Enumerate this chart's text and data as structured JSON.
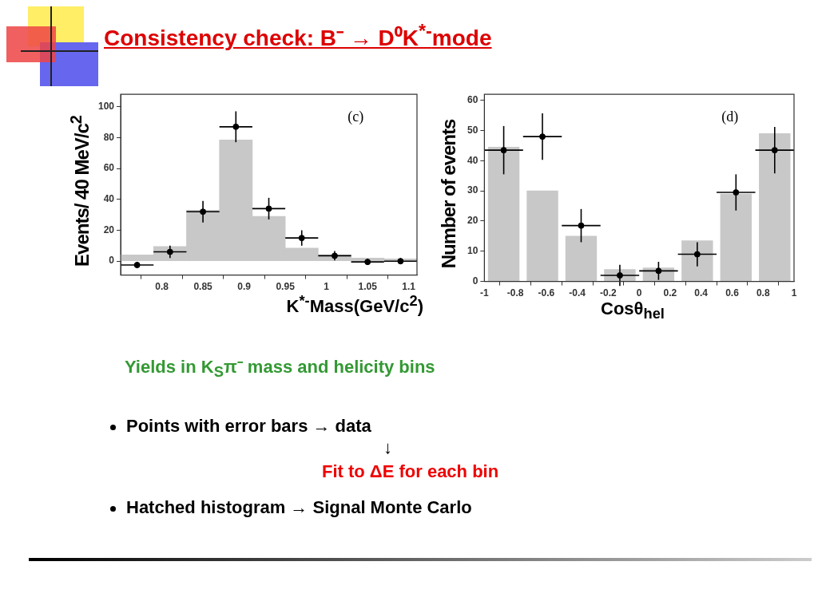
{
  "chart_data": [
    {
      "type": "histogram",
      "title": "Consistency check: B⁻ → D⁰K$^{*-}$mode",
      "xlabel": "K$^{*-}$Mass(GeV/c$^{2}$)",
      "ylabel": "Events/ 40 MeV/c$^{2}$",
      "xlim": [
        0.75,
        1.11
      ],
      "ylim": [
        -9,
        108
      ],
      "xticks": [
        0.8,
        0.85,
        0.9,
        0.95,
        1,
        1.05,
        1.1
      ],
      "yticks": [
        0,
        20,
        40,
        60,
        80,
        100
      ],
      "annotations": [
        "(c)"
      ],
      "color": "#c8c8c8",
      "bins": [
        0.75,
        0.79,
        0.83,
        0.87,
        0.91,
        0.95,
        0.99,
        1.03,
        1.07,
        1.11
      ],
      "values": [
        4,
        9.5,
        33,
        78.5,
        29,
        8.5,
        4,
        2,
        1.5
      ],
      "series": [
        {
          "type": "scatter",
          "color": "#000000",
          "marker": "circle",
          "x": [
            0.77,
            0.81,
            0.85,
            0.89,
            0.93,
            0.97,
            1.01,
            1.05,
            1.09
          ],
          "values": [
            -2.5,
            6,
            32,
            87,
            34,
            15,
            3.5,
            -0.5,
            0
          ],
          "errors": [
            2,
            4,
            7,
            10,
            7,
            5,
            3,
            2,
            2
          ],
          "xerrors": [
            0.02,
            0.02,
            0.02,
            0.02,
            0.02,
            0.02,
            0.02,
            0.02,
            0.02
          ]
        }
      ]
    },
    {
      "type": "histogram",
      "xlabel": "Cosθ$_{hel}$",
      "ylabel": "Number of events",
      "xlim": [
        -1,
        1
      ],
      "ylim": [
        0,
        62
      ],
      "xticks": [
        -1,
        -0.8,
        -0.6,
        -0.4,
        -0.2,
        0,
        0.2,
        0.4,
        0.6,
        0.8,
        1
      ],
      "yticks": [
        0,
        10,
        20,
        30,
        40,
        50,
        60
      ],
      "annotations": [
        "(d)",
        "Yields in K$_{S}$π⁻ mass and helicity bins",
        "Points with error bars → data",
        "↓",
        "Fit to ΔE for each bin",
        "Hatched histogram → Signal Monte Carlo"
      ],
      "color": "#c8c8c8",
      "bins": [
        -1,
        -0.75,
        -0.5,
        -0.25,
        0,
        0.25,
        0.5,
        0.75,
        1
      ],
      "values": [
        44.5,
        30,
        15,
        4,
        4.5,
        13.5,
        29,
        49
      ],
      "series": [
        {
          "type": "scatter",
          "color": "#000000",
          "marker": "circle",
          "x": [
            -0.875,
            -0.625,
            -0.375,
            -0.125,
            0.125,
            0.375,
            0.625,
            0.875
          ],
          "values": [
            43.5,
            48,
            18.5,
            2,
            3.5,
            9,
            29.5,
            43.5
          ],
          "errors": [
            8,
            7.7,
            5.5,
            3.5,
            3,
            4,
            6,
            7.7
          ],
          "xerrors": [
            0.125,
            0.125,
            0.125,
            0.125,
            0.125,
            0.125,
            0.125,
            0.125
          ]
        }
      ]
    }
  ]
}
